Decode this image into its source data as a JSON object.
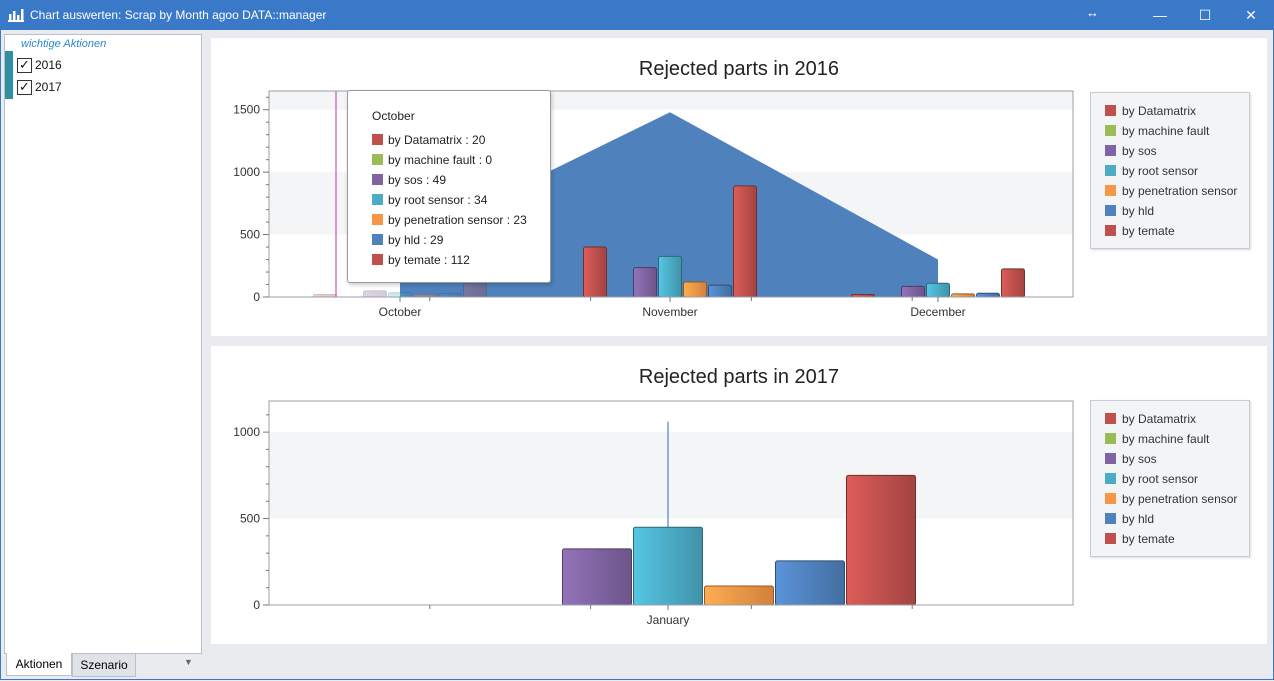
{
  "window": {
    "title": "Chart auswerten: Scrap by Month agoo DATA::manager",
    "icon": "bar-chart-icon",
    "controls": {
      "minimize": "—",
      "maximize": "☐",
      "close": "✕",
      "resize": "↔"
    }
  },
  "sidebar": {
    "section_title": "wichtige Aktionen",
    "items": [
      {
        "label": "2016",
        "checked": true
      },
      {
        "label": "2017",
        "checked": true
      }
    ],
    "tabs": [
      {
        "label": "Aktionen"
      },
      {
        "label": "Szenario"
      }
    ]
  },
  "series_colors": {
    "by Datamatrix": "#c0504d",
    "by machine fault": "#9bbb59",
    "by sos": "#8064a2",
    "by root sensor": "#4bacc6",
    "by penetration sensor": "#f79646",
    "by hld": "#4f81bd",
    "by temate": "#c0504d"
  },
  "chart_data": [
    {
      "type": "bar",
      "title": "Rejected parts in 2016",
      "categories": [
        "October",
        "November",
        "December"
      ],
      "ylim": [
        0,
        1650
      ],
      "yticks": [
        0,
        500,
        1000,
        1500
      ],
      "area_series": {
        "name": "by hld",
        "values": [
          420,
          1480,
          300
        ]
      },
      "series": [
        {
          "name": "by Datamatrix",
          "values": [
            20,
            400,
            20
          ]
        },
        {
          "name": "by machine fault",
          "values": [
            0,
            0,
            0
          ]
        },
        {
          "name": "by sos",
          "values": [
            49,
            235,
            85
          ]
        },
        {
          "name": "by root sensor",
          "values": [
            34,
            325,
            110
          ]
        },
        {
          "name": "by penetration sensor",
          "values": [
            23,
            120,
            25
          ]
        },
        {
          "name": "by hld",
          "values": [
            29,
            95,
            30
          ]
        },
        {
          "name": "by temate",
          "values": [
            112,
            890,
            225
          ]
        }
      ],
      "legend": "right",
      "tooltip": {
        "title": "October",
        "items": [
          {
            "text": "by Datamatrix : 20",
            "color": "#c0504d"
          },
          {
            "text": "by machine fault : 0",
            "color": "#9bbb59"
          },
          {
            "text": "by sos : 49",
            "color": "#8064a2"
          },
          {
            "text": "by root sensor : 34",
            "color": "#4bacc6"
          },
          {
            "text": "by penetration sensor : 23",
            "color": "#f79646"
          },
          {
            "text": "by hld : 29",
            "color": "#4f81bd"
          },
          {
            "text": "by temate : 112",
            "color": "#c0504d"
          }
        ]
      }
    },
    {
      "type": "bar",
      "title": "Rejected parts in 2017",
      "categories": [
        "January"
      ],
      "ylim": [
        0,
        1180
      ],
      "yticks": [
        0,
        500,
        1000
      ],
      "series": [
        {
          "name": "by Datamatrix",
          "values": [
            0
          ]
        },
        {
          "name": "by machine fault",
          "values": [
            0
          ]
        },
        {
          "name": "by sos",
          "values": [
            325
          ]
        },
        {
          "name": "by root sensor",
          "values": [
            450
          ]
        },
        {
          "name": "by penetration sensor",
          "values": [
            110
          ]
        },
        {
          "name": "by hld",
          "values": [
            255
          ]
        },
        {
          "name": "by temate",
          "values": [
            750
          ]
        }
      ],
      "legend": "right"
    }
  ]
}
